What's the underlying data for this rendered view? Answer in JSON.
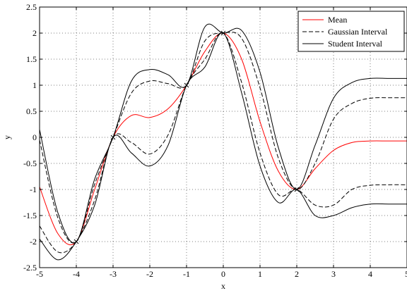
{
  "chart_data": {
    "type": "line",
    "title": "",
    "xlabel": "x",
    "ylabel": "y",
    "xlim": [
      -5,
      5
    ],
    "ylim": [
      -2.5,
      2.5
    ],
    "xticks": [
      -5,
      -4,
      -3,
      -2,
      -1,
      0,
      1,
      2,
      3,
      4,
      5
    ],
    "xtick_labels": [
      "-5",
      "-4",
      "-3",
      "-2",
      "-1",
      "0",
      "1",
      "2",
      "3",
      "4",
      "5"
    ],
    "yticks": [
      -2.5,
      -2,
      -1.5,
      -1,
      -0.5,
      0,
      0.5,
      1,
      1.5,
      2,
      2.5
    ],
    "ytick_labels": [
      "-2.5",
      "-2",
      "-1.5",
      "-1",
      "-0.5",
      "0",
      "0.5",
      "1",
      "1.5",
      "2",
      "2.5"
    ],
    "grid": true,
    "legend_position": "top-right",
    "observations": {
      "x": [
        -4,
        -3,
        -1,
        0,
        2
      ],
      "y": [
        -2,
        0,
        1,
        2,
        -1
      ]
    },
    "x": [
      -5,
      -4.5,
      -4,
      -3.5,
      -3,
      -2.5,
      -2,
      -1.5,
      -1,
      -0.5,
      0,
      0.5,
      1,
      1.5,
      2,
      2.5,
      3,
      3.5,
      4,
      4.5,
      5
    ],
    "series": [
      {
        "name": "Mean",
        "color": "#ff0000",
        "dash": "solid",
        "values": [
          -0.95,
          -1.85,
          -2.0,
          -1.0,
          0.0,
          0.42,
          0.38,
          0.55,
          1.0,
          1.65,
          2.0,
          1.5,
          0.3,
          -0.65,
          -1.0,
          -0.6,
          -0.25,
          -0.1,
          -0.07,
          -0.07,
          -0.07
        ]
      },
      {
        "name": "Gaussian Interval",
        "color": "#000000",
        "dash": "dashed",
        "values": [
          -0.05,
          -1.55,
          -2.0,
          -0.9,
          0.0,
          0.85,
          1.08,
          1.03,
          1.0,
          1.85,
          2.0,
          1.9,
          0.95,
          -0.4,
          -1.0,
          -0.5,
          0.35,
          0.65,
          0.75,
          0.76,
          0.76
        ]
      },
      {
        "name": "Gaussian Interval (lower)",
        "color": "#000000",
        "dash": "dashed",
        "values": [
          -1.7,
          -2.2,
          -2.0,
          -1.2,
          0.0,
          -0.1,
          -0.32,
          0.05,
          1.0,
          1.5,
          2.0,
          1.05,
          -0.3,
          -1.1,
          -1.0,
          -1.3,
          -1.3,
          -1.0,
          -0.92,
          -0.91,
          -0.91
        ]
      },
      {
        "name": "Student Interval",
        "color": "#000000",
        "dash": "solid",
        "values": [
          0.15,
          -1.45,
          -2.0,
          -0.8,
          0.0,
          1.08,
          1.3,
          1.2,
          1.0,
          2.12,
          2.0,
          2.05,
          1.25,
          -0.2,
          -1.0,
          -0.15,
          0.75,
          1.05,
          1.13,
          1.13,
          1.13
        ]
      },
      {
        "name": "Student Interval (lower)",
        "color": "#000000",
        "dash": "solid",
        "values": [
          -1.95,
          -2.35,
          -2.0,
          -1.3,
          0.0,
          -0.3,
          -0.55,
          -0.15,
          1.0,
          1.35,
          2.0,
          0.85,
          -0.55,
          -1.25,
          -1.0,
          -1.5,
          -1.5,
          -1.35,
          -1.28,
          -1.28,
          -1.28
        ]
      }
    ],
    "legend": [
      {
        "label": "Mean",
        "color": "#ff0000",
        "dash": "solid"
      },
      {
        "label": "Gaussian Interval",
        "color": "#000000",
        "dash": "dashed"
      },
      {
        "label": "Student Interval",
        "color": "#000000",
        "dash": "solid"
      }
    ]
  }
}
